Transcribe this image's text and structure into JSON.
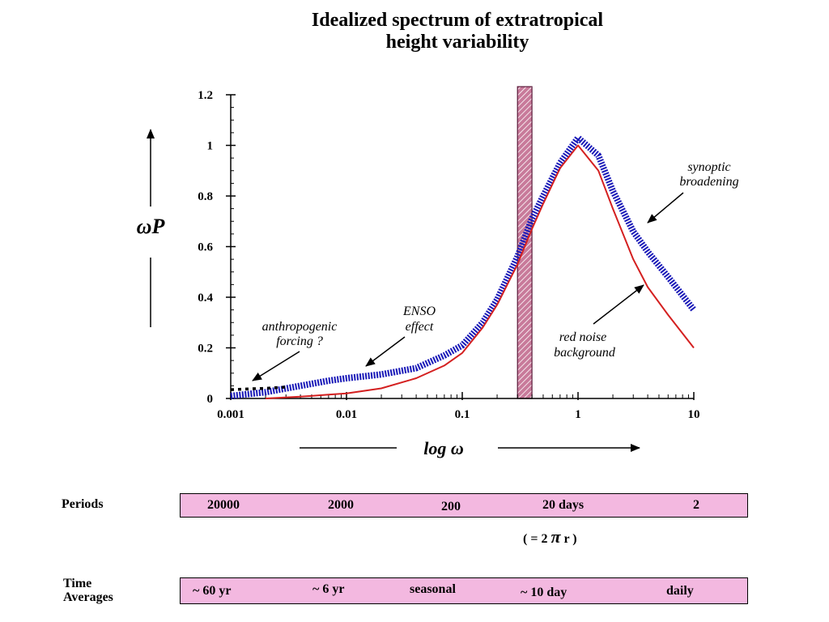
{
  "chart_data": {
    "type": "line",
    "title": "Idealized spectrum of extratropical",
    "subtitle": "height variability",
    "xlabel": "log  ω",
    "ylabel": "ωP",
    "x_scale": "log",
    "xlim": [
      0.001,
      10
    ],
    "ylim": [
      0,
      1.2
    ],
    "x_ticks": [
      {
        "value": 0.001,
        "label": "0.001"
      },
      {
        "value": 0.01,
        "label": "0.01"
      },
      {
        "value": 0.1,
        "label": "0.1"
      },
      {
        "value": 1,
        "label": "1"
      },
      {
        "value": 10,
        "label": "10"
      }
    ],
    "y_ticks": [
      {
        "value": 0,
        "label": "0"
      },
      {
        "value": 0.2,
        "label": "0.2"
      },
      {
        "value": 0.4,
        "label": "0.4"
      },
      {
        "value": 0.6,
        "label": "0.6"
      },
      {
        "value": 0.8,
        "label": "0.8"
      },
      {
        "value": 1,
        "label": "1"
      },
      {
        "value": 1.2,
        "label": "1.2"
      }
    ],
    "grid": false,
    "series": [
      {
        "role": "total-spectrum",
        "color": "#1a1ab8",
        "x": [
          0.001,
          0.002,
          0.004,
          0.007,
          0.01,
          0.02,
          0.04,
          0.07,
          0.1,
          0.15,
          0.2,
          0.3,
          0.4,
          0.5,
          0.7,
          1.0,
          1.5,
          2.0,
          3.0,
          4.0,
          6.0,
          10.0
        ],
        "y": [
          0.01,
          0.025,
          0.05,
          0.07,
          0.08,
          0.095,
          0.12,
          0.17,
          0.21,
          0.3,
          0.39,
          0.56,
          0.71,
          0.8,
          0.93,
          1.03,
          0.96,
          0.82,
          0.66,
          0.58,
          0.48,
          0.35
        ]
      },
      {
        "role": "red-noise-background",
        "color": "#d42020",
        "x": [
          0.002,
          0.004,
          0.007,
          0.01,
          0.02,
          0.04,
          0.07,
          0.1,
          0.15,
          0.2,
          0.3,
          0.4,
          0.5,
          0.7,
          1.0,
          1.5,
          2.0,
          3.0,
          4.0,
          6.0,
          10.0
        ],
        "y": [
          0.0,
          0.007,
          0.015,
          0.02,
          0.04,
          0.08,
          0.13,
          0.18,
          0.28,
          0.37,
          0.53,
          0.67,
          0.77,
          0.91,
          1.0,
          0.9,
          0.75,
          0.55,
          0.44,
          0.33,
          0.2
        ]
      },
      {
        "role": "anthropogenic-dotted",
        "color": "#000000",
        "x": [
          0.001,
          0.0015,
          0.002,
          0.003
        ],
        "y": [
          0.035,
          0.038,
          0.04,
          0.045
        ]
      }
    ],
    "band": {
      "x_range": [
        0.3,
        0.4
      ],
      "fill": "#c87a9a"
    },
    "annotations": [
      {
        "lines": [
          "anthropogenic",
          "forcing ?"
        ]
      },
      {
        "lines": [
          "ENSO",
          "effect"
        ]
      },
      {
        "lines": [
          "synoptic",
          "broadening"
        ]
      },
      {
        "lines": [
          "red noise",
          "background"
        ]
      }
    ]
  },
  "periods": {
    "label": "Periods",
    "values": [
      "20000",
      "2000",
      "200",
      "20  days",
      "2"
    ],
    "note_prefix": "( = 2",
    "note_pi": "π",
    "note_suffix": "r )"
  },
  "averages": {
    "label_line1": "Time",
    "label_line2": "Averages",
    "values": [
      "~ 60 yr",
      "~ 6 yr",
      "seasonal",
      "~ 10  day",
      "daily"
    ]
  }
}
